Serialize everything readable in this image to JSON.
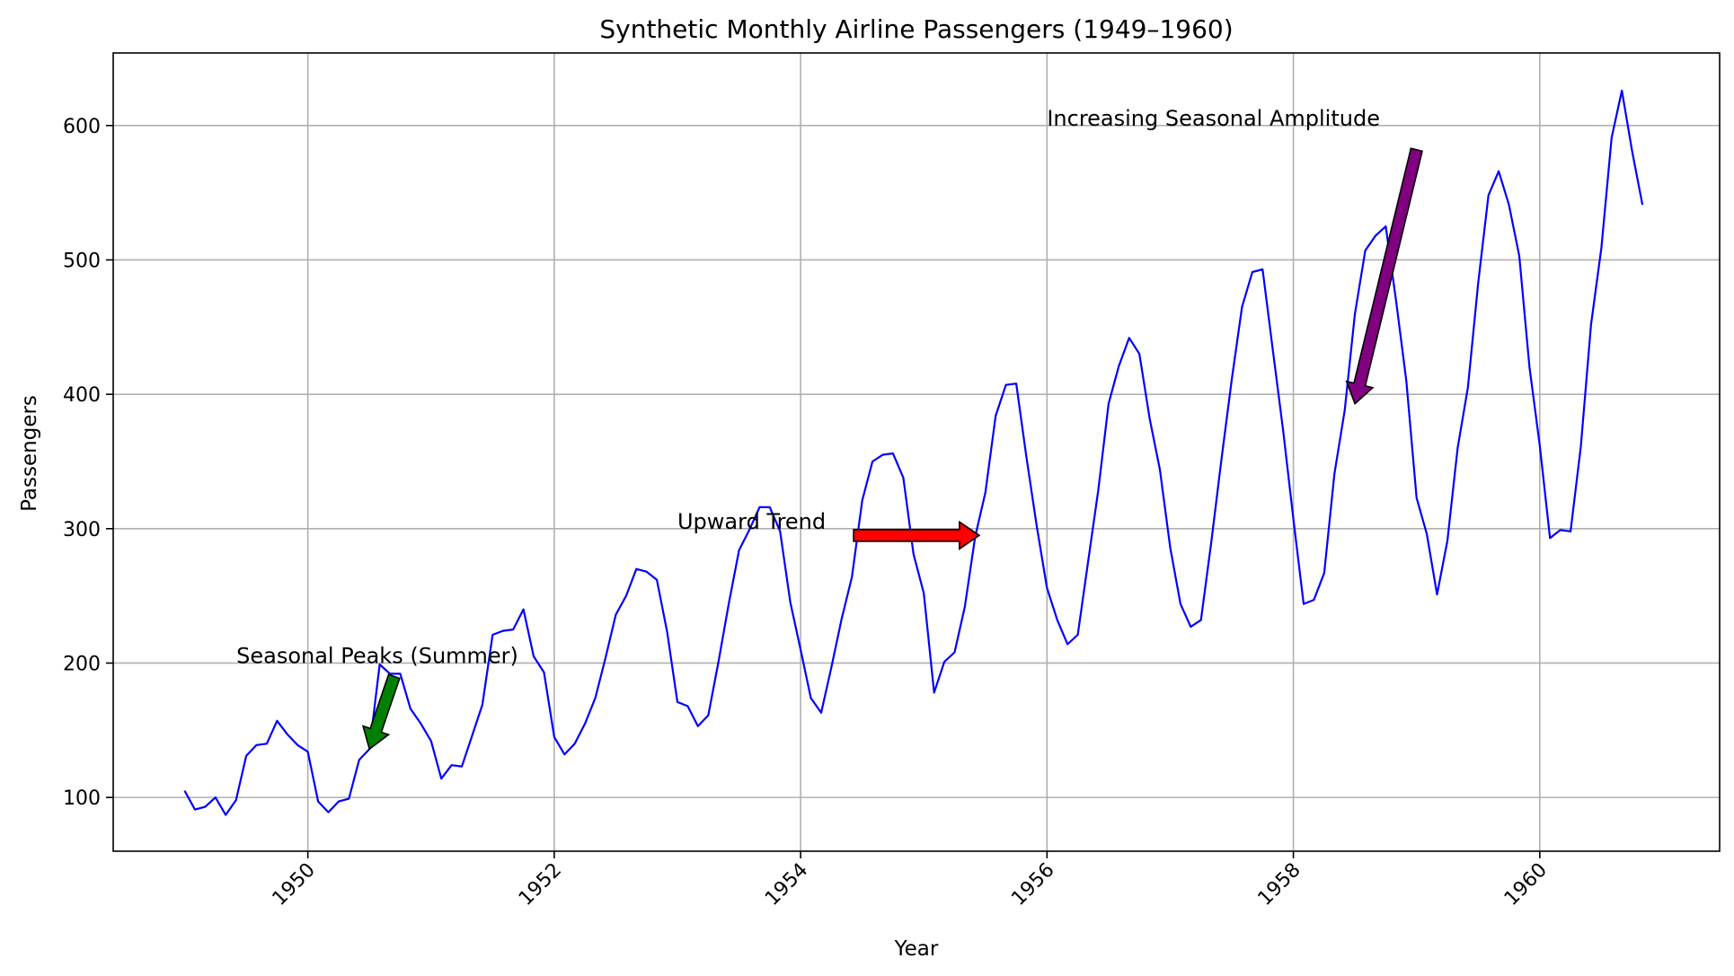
{
  "chart_data": {
    "type": "line",
    "title": "Synthetic Monthly Airline Passengers (1949–1960)",
    "xlabel": "Year",
    "ylabel": "Passengers",
    "xlim": [
      1948.42,
      1961.46
    ],
    "ylim": [
      60,
      654
    ],
    "x_ticks": [
      1950,
      1952,
      1954,
      1956,
      1958,
      1960
    ],
    "x_tick_labels": [
      "1950",
      "1952",
      "1954",
      "1956",
      "1958",
      "1960"
    ],
    "y_ticks": [
      100,
      200,
      300,
      400,
      500,
      600
    ],
    "y_tick_labels": [
      "100",
      "200",
      "300",
      "400",
      "500",
      "600"
    ],
    "grid": true,
    "series": [
      {
        "color": "#0000ff",
        "start_year": 1949,
        "frequency": "monthly",
        "values": [
          105,
          91,
          93,
          100,
          87,
          98,
          131,
          139,
          140,
          157,
          147,
          139,
          134,
          97,
          89,
          97,
          99,
          128,
          136,
          199,
          192,
          192,
          166,
          155,
          142,
          114,
          124,
          123,
          146,
          169,
          221,
          224,
          225,
          240,
          205,
          193,
          145,
          132,
          140,
          155,
          174,
          204,
          236,
          250,
          270,
          268,
          262,
          223,
          171,
          168,
          153,
          161,
          201,
          244,
          284,
          299,
          316,
          316,
          298,
          245,
          210,
          174,
          163,
          197,
          233,
          264,
          321,
          350,
          355,
          356,
          338,
          281,
          252,
          178,
          201,
          208,
          242,
          294,
          327,
          384,
          407,
          408,
          353,
          302,
          256,
          232,
          214,
          221,
          275,
          329,
          393,
          421,
          442,
          430,
          382,
          344,
          286,
          244,
          227,
          232,
          290,
          352,
          411,
          465,
          491,
          493,
          433,
          373,
          307,
          244,
          247,
          267,
          341,
          388,
          460,
          507,
          518,
          525,
          470,
          410,
          323,
          296,
          251,
          291,
          360,
          405,
          483,
          548,
          566,
          541,
          503,
          420,
          362,
          293,
          299,
          298,
          361,
          452,
          509,
          591,
          626,
          581,
          541
        ]
      }
    ],
    "annotations": [
      {
        "text": "Seasonal Peaks (Summer)",
        "text_xy": [
          1949.42,
          200
        ],
        "arrow_from": [
          1950.7,
          190
        ],
        "arrow_to": [
          1950.5,
          136
        ],
        "color": "#008000"
      },
      {
        "text": "Upward Trend",
        "text_xy": [
          1953.0,
          300
        ],
        "arrow_from": [
          1954.43,
          295
        ],
        "arrow_to": [
          1955.45,
          295
        ],
        "color": "#ff0000"
      },
      {
        "text": "Increasing Seasonal Amplitude",
        "text_xy": [
          1956.0,
          600
        ],
        "arrow_from": [
          1959.0,
          582
        ],
        "arrow_to": [
          1958.5,
          393
        ],
        "color": "#800080"
      }
    ]
  }
}
